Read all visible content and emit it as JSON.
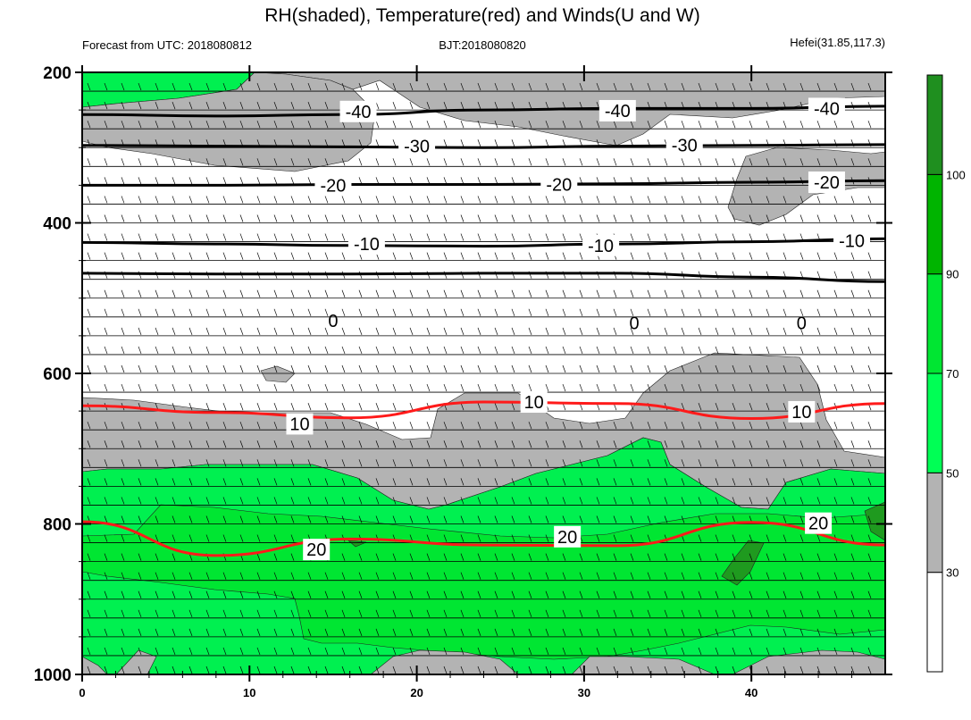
{
  "chart_data": {
    "type": "heatmap",
    "title": "RH(shaded), Temperature(red) and Winds(U and W)",
    "left_string": "Forecast from UTC: 2018080812",
    "center_string": "BJT:2018080820",
    "right_string": "Hefei(31.85,117.3)",
    "xlim": [
      0,
      48
    ],
    "ylim": [
      1000,
      200
    ],
    "x_ticks": [
      0,
      10,
      20,
      30,
      40
    ],
    "x_tick_labels": [
      "0",
      "10",
      "20",
      "30",
      "40"
    ],
    "y_ticks": [
      200,
      400,
      600,
      800,
      1000
    ],
    "y_tick_labels": [
      "200",
      "400",
      "600",
      "800",
      "1000"
    ],
    "colorbar": {
      "levels": [
        30,
        50,
        70,
        90,
        100
      ],
      "labels": [
        "30",
        "50",
        "70",
        "90",
        "100"
      ],
      "colors": [
        "#ffffff",
        "#b3b3b3",
        "#00ff55",
        "#00e632",
        "#00b400",
        "#1f8f1f"
      ]
    },
    "temperature_contours": {
      "black": [
        {
          "value": -40,
          "p": [
            256,
            258,
            256,
            250,
            248,
            248,
            245
          ]
        },
        {
          "value": -30,
          "p": [
            297,
            298,
            299,
            300,
            298,
            297,
            296
          ]
        },
        {
          "value": -20,
          "p": [
            350,
            350,
            349,
            349,
            348,
            346,
            344
          ]
        },
        {
          "value": -10,
          "p": [
            426,
            428,
            430,
            431,
            428,
            425,
            421
          ]
        },
        {
          "value": 0,
          "p": [
            467,
            468,
            468,
            467,
            467,
            472,
            478
          ]
        }
      ],
      "red": [
        {
          "value": 10,
          "p": [
            643,
            652,
            659,
            638,
            640,
            660,
            640
          ]
        },
        {
          "value": 20,
          "p": [
            797,
            842,
            820,
            828,
            829,
            798,
            828
          ]
        }
      ]
    },
    "contour_labels": [
      {
        "text": "-40",
        "x": 16.5,
        "p": 252
      },
      {
        "text": "-40",
        "x": 32,
        "p": 251
      },
      {
        "text": "-40",
        "x": 44.5,
        "p": 248
      },
      {
        "text": "-30",
        "x": 20,
        "p": 298
      },
      {
        "text": "-30",
        "x": 36,
        "p": 297
      },
      {
        "text": "-20",
        "x": 15,
        "p": 350
      },
      {
        "text": "-20",
        "x": 28.5,
        "p": 349
      },
      {
        "text": "-20",
        "x": 44.5,
        "p": 346
      },
      {
        "text": "-10",
        "x": 17,
        "p": 428
      },
      {
        "text": "-10",
        "x": 31,
        "p": 430
      },
      {
        "text": "-10",
        "x": 46,
        "p": 424
      },
      {
        "text": "0",
        "x": 15,
        "p": 530
      },
      {
        "text": "0",
        "x": 33,
        "p": 533
      },
      {
        "text": "0",
        "x": 43,
        "p": 533
      },
      {
        "text": "10",
        "x": 13,
        "p": 667
      },
      {
        "text": "10",
        "x": 27,
        "p": 638
      },
      {
        "text": "10",
        "x": 43,
        "p": 651
      },
      {
        "text": "20",
        "x": 14,
        "p": 834
      },
      {
        "text": "20",
        "x": 29,
        "p": 817
      },
      {
        "text": "20",
        "x": 44,
        "p": 799
      }
    ]
  }
}
